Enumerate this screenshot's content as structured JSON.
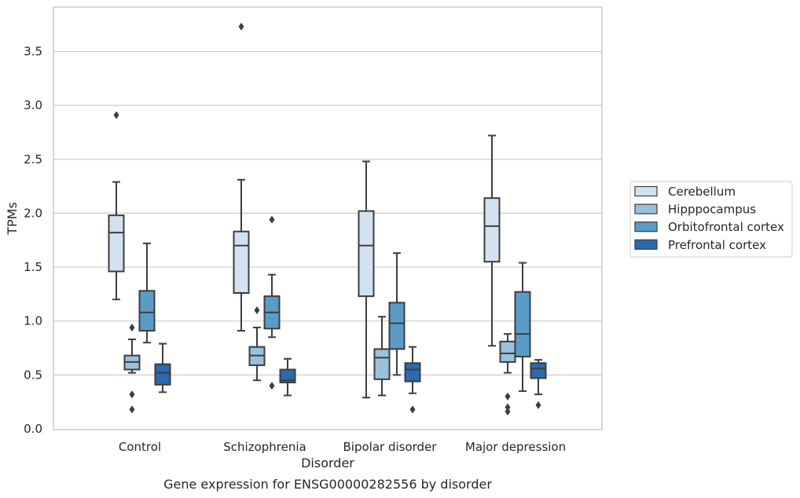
{
  "chart_data": {
    "type": "box",
    "caption": "Gene expression for ENSG00000282556 by disorder",
    "xlabel": "Disorder",
    "ylabel": "TPMs",
    "ylim": [
      0,
      3.9
    ],
    "yticks": [
      "0.0",
      "0.5",
      "1.0",
      "1.5",
      "2.0",
      "2.5",
      "3.0",
      "3.5"
    ],
    "grid": true,
    "legend_position": "right",
    "categories": [
      "Control",
      "Schizophrenia",
      "Bipolar disorder",
      "Major depression"
    ],
    "series": [
      {
        "name": "Cerebellum",
        "color": "#d2e2f1",
        "boxes": [
          {
            "q1": 1.46,
            "median": 1.82,
            "q3": 1.98,
            "whisker_low": 1.2,
            "whisker_high": 2.29,
            "outliers": [
              2.91
            ]
          },
          {
            "q1": 1.26,
            "median": 1.7,
            "q3": 1.83,
            "whisker_low": 0.91,
            "whisker_high": 2.31,
            "outliers": [
              3.73
            ]
          },
          {
            "q1": 1.23,
            "median": 1.7,
            "q3": 2.02,
            "whisker_low": 0.29,
            "whisker_high": 2.48,
            "outliers": []
          },
          {
            "q1": 1.55,
            "median": 1.88,
            "q3": 2.14,
            "whisker_low": 0.77,
            "whisker_high": 2.72,
            "outliers": []
          }
        ]
      },
      {
        "name": "Hipppocampus",
        "color": "#9ac1dc",
        "boxes": [
          {
            "q1": 0.55,
            "median": 0.62,
            "q3": 0.68,
            "whisker_low": 0.52,
            "whisker_high": 0.83,
            "outliers": [
              0.94,
              0.32,
              0.18
            ]
          },
          {
            "q1": 0.59,
            "median": 0.68,
            "q3": 0.76,
            "whisker_low": 0.45,
            "whisker_high": 0.94,
            "outliers": [
              1.1
            ]
          },
          {
            "q1": 0.46,
            "median": 0.66,
            "q3": 0.74,
            "whisker_low": 0.31,
            "whisker_high": 1.04,
            "outliers": []
          },
          {
            "q1": 0.62,
            "median": 0.7,
            "q3": 0.81,
            "whisker_low": 0.52,
            "whisker_high": 0.88,
            "outliers": [
              0.3,
              0.2,
              0.16
            ]
          }
        ]
      },
      {
        "name": "Orbitofrontal cortex",
        "color": "#5a9bc8",
        "boxes": [
          {
            "q1": 0.91,
            "median": 1.08,
            "q3": 1.28,
            "whisker_low": 0.8,
            "whisker_high": 1.72,
            "outliers": []
          },
          {
            "q1": 0.93,
            "median": 1.08,
            "q3": 1.23,
            "whisker_low": 0.85,
            "whisker_high": 1.43,
            "outliers": [
              1.94,
              0.4
            ]
          },
          {
            "q1": 0.74,
            "median": 0.98,
            "q3": 1.17,
            "whisker_low": 0.5,
            "whisker_high": 1.63,
            "outliers": []
          },
          {
            "q1": 0.67,
            "median": 0.88,
            "q3": 1.27,
            "whisker_low": 0.35,
            "whisker_high": 1.54,
            "outliers": []
          }
        ]
      },
      {
        "name": "Prefrontal cortex",
        "color": "#2a6aad",
        "boxes": [
          {
            "q1": 0.41,
            "median": 0.52,
            "q3": 0.6,
            "whisker_low": 0.34,
            "whisker_high": 0.79,
            "outliers": []
          },
          {
            "q1": 0.43,
            "median": 0.45,
            "q3": 0.55,
            "whisker_low": 0.31,
            "whisker_high": 0.65,
            "outliers": []
          },
          {
            "q1": 0.44,
            "median": 0.55,
            "q3": 0.61,
            "whisker_low": 0.33,
            "whisker_high": 0.76,
            "outliers": [
              0.18
            ]
          },
          {
            "q1": 0.47,
            "median": 0.56,
            "q3": 0.61,
            "whisker_low": 0.32,
            "whisker_high": 0.64,
            "outliers": [
              0.22
            ]
          }
        ]
      }
    ]
  }
}
